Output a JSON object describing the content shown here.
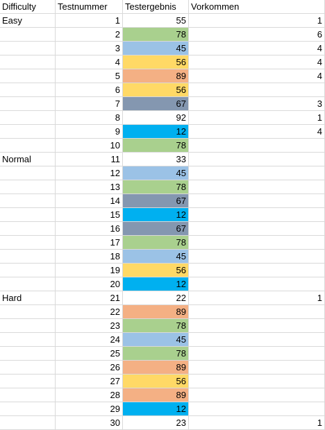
{
  "headers": {
    "difficulty": "Difficulty",
    "test_number": "Testnummer",
    "test_result": "Testergebnis",
    "occurrence": "Vorkommen"
  },
  "colors": {
    "green": "#a9d08e",
    "blue": "#9bc2e6",
    "yellow": "#ffd966",
    "orange": "#f4b084",
    "slate": "#8497b0",
    "cyan": "#00b0f0",
    "white": "#ffffff",
    "gridline": "#d9d9d9"
  },
  "rows": [
    {
      "difficulty": "Easy",
      "test": "1",
      "result": "55",
      "color": "white",
      "occ": "1"
    },
    {
      "difficulty": "",
      "test": "2",
      "result": "78",
      "color": "green",
      "occ": "6"
    },
    {
      "difficulty": "",
      "test": "3",
      "result": "45",
      "color": "blue",
      "occ": "4"
    },
    {
      "difficulty": "",
      "test": "4",
      "result": "56",
      "color": "yellow",
      "occ": "4"
    },
    {
      "difficulty": "",
      "test": "5",
      "result": "89",
      "color": "orange",
      "occ": "4"
    },
    {
      "difficulty": "",
      "test": "6",
      "result": "56",
      "color": "yellow",
      "occ": ""
    },
    {
      "difficulty": "",
      "test": "7",
      "result": "67",
      "color": "slate",
      "occ": "3"
    },
    {
      "difficulty": "",
      "test": "8",
      "result": "92",
      "color": "white",
      "occ": "1"
    },
    {
      "difficulty": "",
      "test": "9",
      "result": "12",
      "color": "cyan",
      "occ": "4"
    },
    {
      "difficulty": "",
      "test": "10",
      "result": "78",
      "color": "green",
      "occ": ""
    },
    {
      "difficulty": "Normal",
      "test": "11",
      "result": "33",
      "color": "white",
      "occ": ""
    },
    {
      "difficulty": "",
      "test": "12",
      "result": "45",
      "color": "blue",
      "occ": ""
    },
    {
      "difficulty": "",
      "test": "13",
      "result": "78",
      "color": "green",
      "occ": ""
    },
    {
      "difficulty": "",
      "test": "14",
      "result": "67",
      "color": "slate",
      "occ": ""
    },
    {
      "difficulty": "",
      "test": "15",
      "result": "12",
      "color": "cyan",
      "occ": ""
    },
    {
      "difficulty": "",
      "test": "16",
      "result": "67",
      "color": "slate",
      "occ": ""
    },
    {
      "difficulty": "",
      "test": "17",
      "result": "78",
      "color": "green",
      "occ": ""
    },
    {
      "difficulty": "",
      "test": "18",
      "result": "45",
      "color": "blue",
      "occ": ""
    },
    {
      "difficulty": "",
      "test": "19",
      "result": "56",
      "color": "yellow",
      "occ": ""
    },
    {
      "difficulty": "",
      "test": "20",
      "result": "12",
      "color": "cyan",
      "occ": ""
    },
    {
      "difficulty": "Hard",
      "test": "21",
      "result": "22",
      "color": "white",
      "occ": "1"
    },
    {
      "difficulty": "",
      "test": "22",
      "result": "89",
      "color": "orange",
      "occ": ""
    },
    {
      "difficulty": "",
      "test": "23",
      "result": "78",
      "color": "green",
      "occ": ""
    },
    {
      "difficulty": "",
      "test": "24",
      "result": "45",
      "color": "blue",
      "occ": ""
    },
    {
      "difficulty": "",
      "test": "25",
      "result": "78",
      "color": "green",
      "occ": ""
    },
    {
      "difficulty": "",
      "test": "26",
      "result": "89",
      "color": "orange",
      "occ": ""
    },
    {
      "difficulty": "",
      "test": "27",
      "result": "56",
      "color": "yellow",
      "occ": ""
    },
    {
      "difficulty": "",
      "test": "28",
      "result": "89",
      "color": "orange",
      "occ": ""
    },
    {
      "difficulty": "",
      "test": "29",
      "result": "12",
      "color": "cyan",
      "occ": ""
    },
    {
      "difficulty": "",
      "test": "30",
      "result": "23",
      "color": "white",
      "occ": "1"
    }
  ]
}
